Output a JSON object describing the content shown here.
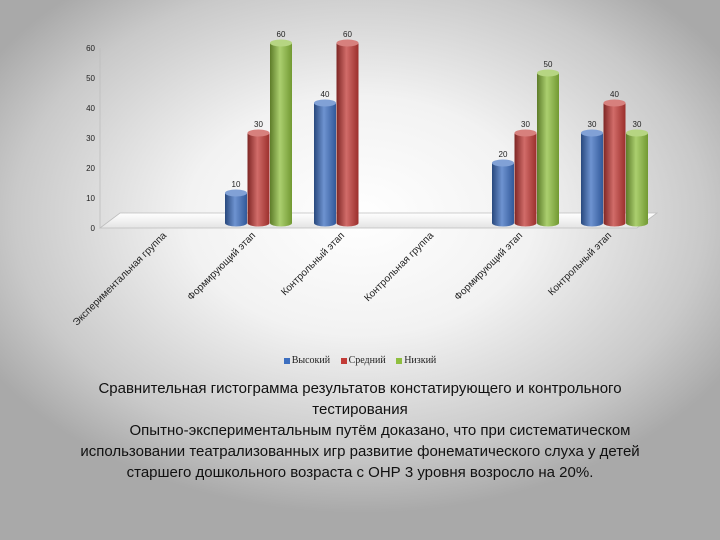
{
  "chart_data": {
    "type": "bar",
    "categories": [
      "Экспериментальная  группа",
      "Формирующий этап",
      "Контрольный этап",
      "Контрольная  группа",
      "Формирующий этап",
      "Контрольный этап"
    ],
    "series": [
      {
        "name": "Высокий",
        "color": "#3d6fc0",
        "values": [
          null,
          10,
          40,
          null,
          20,
          30
        ]
      },
      {
        "name": "Средний",
        "color": "#c23b37",
        "values": [
          null,
          30,
          60,
          null,
          30,
          40
        ]
      },
      {
        "name": "Низкий",
        "color": "#8fbf3f",
        "values": [
          null,
          60,
          null,
          null,
          50,
          30
        ]
      }
    ],
    "ylim": [
      0,
      60
    ],
    "yticks": [
      0,
      10,
      20,
      30,
      40,
      50,
      60
    ],
    "grid": false,
    "legend_position": "bottom"
  },
  "caption": {
    "title": "Сравнительная гистограмма результатов констатирующего и контрольного тестирования",
    "body": "Опытно-экспериментальным  путём  доказано, что при систематическом использовании театрализованных игр развитие фонематического слуха у детей старшего дошкольного возраста с ОНР 3 уровня возросло на 20%."
  }
}
